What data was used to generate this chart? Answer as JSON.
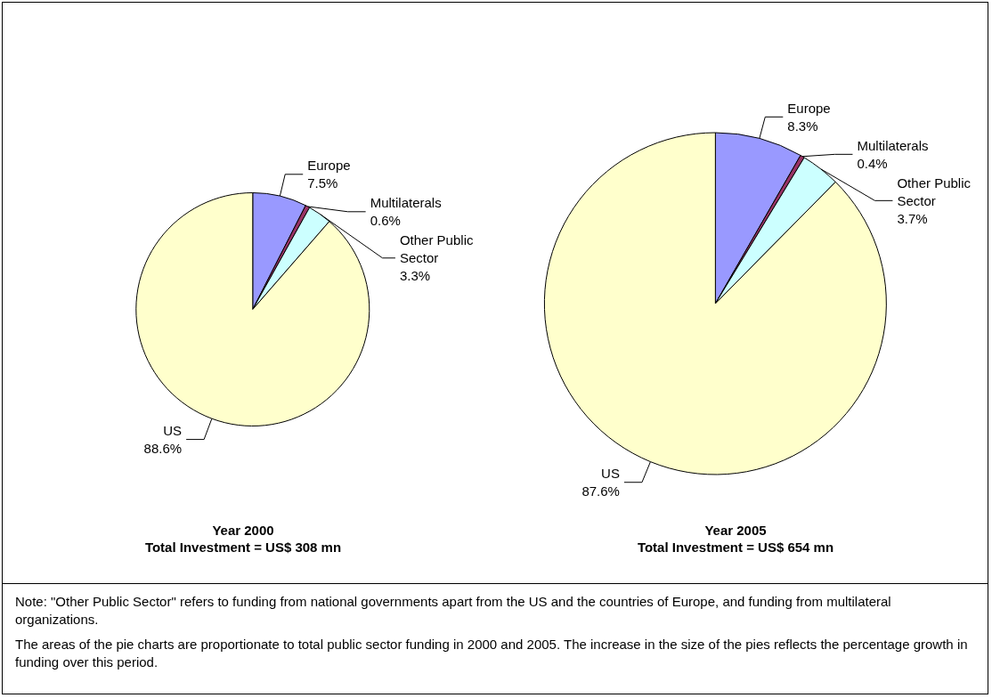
{
  "chart_data": [
    {
      "type": "pie",
      "title": "Year 2000",
      "subtitle": "Total Investment = US$ 308 mn",
      "categories": [
        "Europe",
        "Multilaterals",
        "Other Public Sector",
        "US"
      ],
      "values": [
        7.5,
        0.6,
        3.3,
        88.6
      ],
      "value_labels": [
        "7.5%",
        "0.6%",
        "3.3%",
        "88.6%"
      ],
      "colors": [
        "#9999ff",
        "#993366",
        "#ccffff",
        "#ffffcc"
      ],
      "annotations": [
        "Note: \"Other Public Sector\" refers to funding from national governments apart from the US and the countries of Europe, and funding from multilateral organizations.",
        "The areas of the pie charts are proportionate to total public sector funding in 2000 and 2005. The increase in the size of the pies reflects the percentage growth in funding over this period."
      ]
    },
    {
      "type": "pie",
      "title": "Year 2005",
      "subtitle": "Total Investment = US$ 654 mn",
      "categories": [
        "Europe",
        "Multilaterals",
        "Other Public Sector",
        "US"
      ],
      "values": [
        8.3,
        0.4,
        3.7,
        87.6
      ],
      "value_labels": [
        "8.3%",
        "0.4%",
        "3.7%",
        "87.6%"
      ],
      "colors": [
        "#9999ff",
        "#993366",
        "#ccffff",
        "#ffffcc"
      ]
    }
  ]
}
